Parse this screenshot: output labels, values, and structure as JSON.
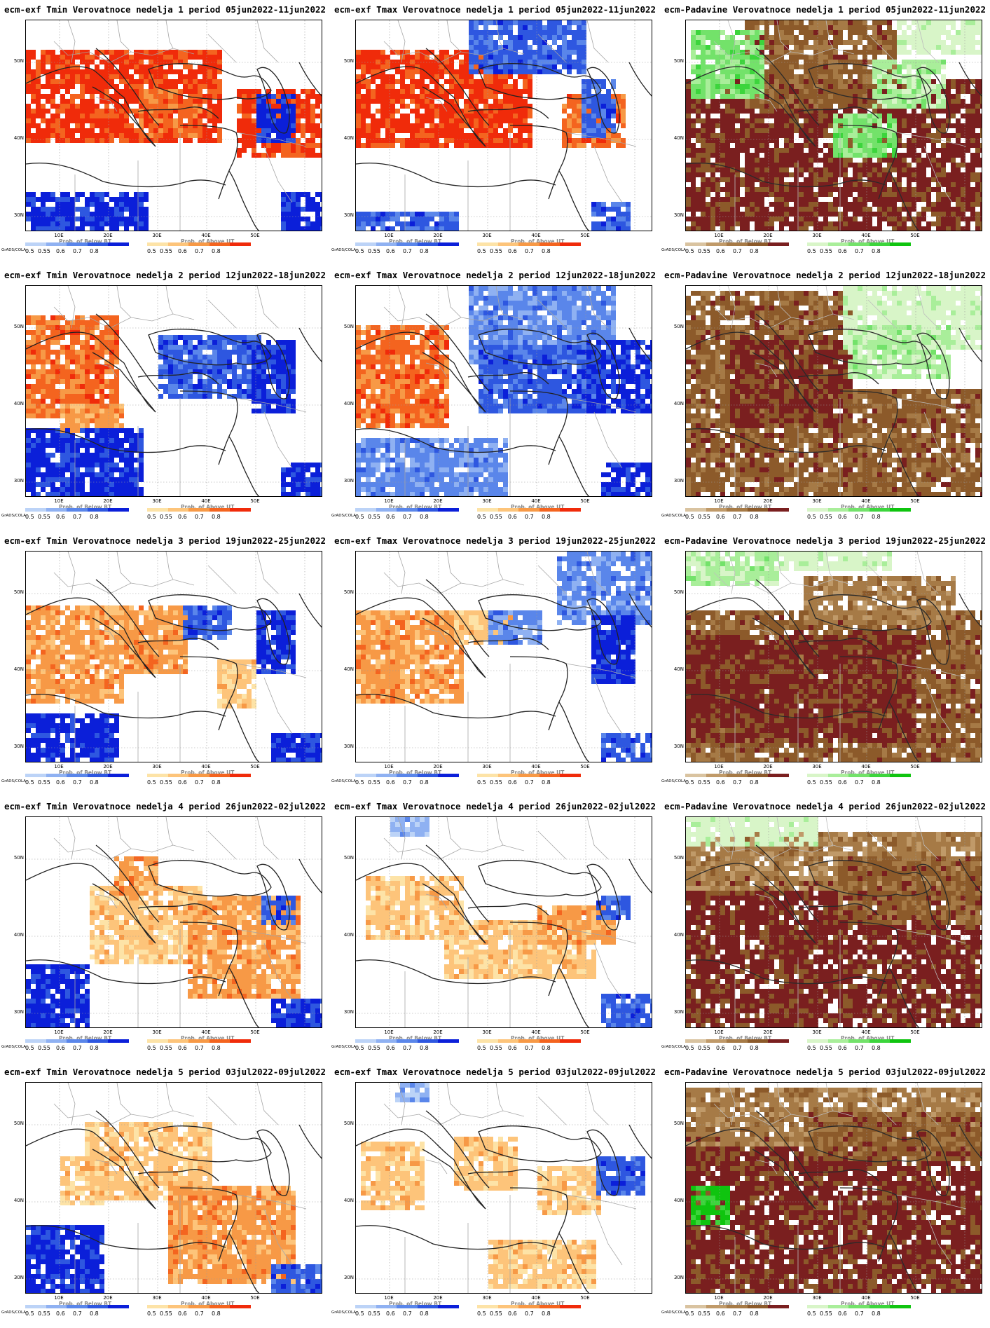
{
  "axes": {
    "lat_labels": [
      "50N",
      "40N",
      "30N"
    ],
    "lon_labels": [
      "10E",
      "20E",
      "30E",
      "40E",
      "50E"
    ]
  },
  "legend": {
    "grads_label": "GrADS/COLA",
    "below_label": "Prob. of Below BT",
    "above_label": "Prob. of Above UT",
    "values": [
      "0.5",
      "0.55",
      "0.6",
      "0.7",
      "0.8"
    ],
    "below_colors": [
      "#bcd3f7",
      "#8fb1f2",
      "#5a86ea",
      "#2e57e0",
      "#0b1fd9"
    ],
    "above_colors": [
      "#fde3a7",
      "#fdc47a",
      "#f79946",
      "#f4641f",
      "#f02b0a"
    ],
    "dry_colors": [
      "#d9c3a0",
      "#c09a69",
      "#a67a46",
      "#8c5a2a",
      "#7a1f1f"
    ],
    "wet_colors": [
      "#d8f5c8",
      "#a9ee9a",
      "#73e26a",
      "#3cd53c",
      "#0fc40f"
    ]
  },
  "rows": [
    {
      "week": "1",
      "tmin_title": "ecm-exf Tmin Verovatnoce nedelja 1 period 05jun2022-11jun2022",
      "tmax_title": "ecm-exf Tmax Verovatnoce nedelja 1 period 05jun2022-11jun2022",
      "precip_title": "ecm-Padavine Verovatnoce nedelja 1 period 05jun2022-11jun2022"
    },
    {
      "week": "2",
      "tmin_title": "ecm-exf Tmin Verovatnoce nedelja 2 period 12jun2022-18jun2022",
      "tmax_title": "ecm-exf Tmax Verovatnoce nedelja 2 period 12jun2022-18jun2022",
      "precip_title": "ecm-Padavine Verovatnoce nedelja 2 period 12jun2022-18jun2022"
    },
    {
      "week": "3",
      "tmin_title": "ecm-exf Tmin Verovatnoce nedelja 3 period 19jun2022-25jun2022",
      "tmax_title": "ecm-exf Tmax Verovatnoce nedelja 3 period 19jun2022-25jun2022",
      "precip_title": "ecm-Padavine Verovatnoce nedelja 3 period 19jun2022-25jun2022"
    },
    {
      "week": "4",
      "tmin_title": "ecm-exf Tmin Verovatnoce nedelja 4 period 26jun2022-02jul2022",
      "tmax_title": "ecm-exf Tmax Verovatnoce nedelja 4 period 26jun2022-02jul2022",
      "precip_title": "ecm-Padavine Verovatnoce nedelja 4 period 26jun2022-02jul2022"
    },
    {
      "week": "5",
      "tmin_title": "ecm-exf Tmin Verovatnoce nedelja 5 period 03jul2022-09jul2022",
      "tmax_title": "ecm-exf Tmax Verovatnoce nedelja 5 period 03jul2022-09jul2022",
      "precip_title": "ecm-Padavine Verovatnoce nedelja 5 period 03jul2022-09jul2022"
    }
  ],
  "patterns": {
    "tmin": [
      [
        [
          "a",
          0,
          0.16,
          0.66,
          0.4,
          4
        ],
        [
          "a",
          0.38,
          0.34,
          0.2,
          0.2,
          3
        ],
        [
          "a",
          0.72,
          0.34,
          0.28,
          0.3,
          4
        ],
        [
          "b",
          0,
          0.82,
          0.4,
          0.18,
          4
        ],
        [
          "b",
          0.78,
          0.36,
          0.12,
          0.2,
          4
        ],
        [
          "b",
          0.86,
          0.82,
          0.14,
          0.18,
          4
        ]
      ],
      [
        [
          "a",
          0,
          0.16,
          0.3,
          0.46,
          3
        ],
        [
          "a",
          0.12,
          0.56,
          0.2,
          0.12,
          2
        ],
        [
          "b",
          0,
          0.68,
          0.38,
          0.32,
          4
        ],
        [
          "b",
          0.46,
          0.24,
          0.32,
          0.28,
          3
        ],
        [
          "b",
          0.76,
          0.26,
          0.14,
          0.34,
          4
        ],
        [
          "b",
          0.86,
          0.84,
          0.14,
          0.16,
          4
        ]
      ],
      [
        [
          "a",
          0,
          0.26,
          0.32,
          0.44,
          2
        ],
        [
          "a",
          0.34,
          0.26,
          0.2,
          0.3,
          2
        ],
        [
          "a",
          0.66,
          0.52,
          0.1,
          0.2,
          1
        ],
        [
          "b",
          0.54,
          0.26,
          0.14,
          0.14,
          3
        ],
        [
          "b",
          0.78,
          0.3,
          0.12,
          0.26,
          4
        ],
        [
          "b",
          0,
          0.78,
          0.3,
          0.22,
          4
        ],
        [
          "b",
          0.84,
          0.88,
          0.16,
          0.12,
          4
        ]
      ],
      [
        [
          "a",
          0.22,
          0.34,
          0.36,
          0.34,
          1
        ],
        [
          "a",
          0.56,
          0.38,
          0.36,
          0.46,
          2
        ],
        [
          "a",
          0.3,
          0.2,
          0.14,
          0.16,
          2
        ],
        [
          "b",
          0,
          0.7,
          0.2,
          0.3,
          4
        ],
        [
          "b",
          0.84,
          0.86,
          0.16,
          0.14,
          4
        ],
        [
          "b",
          0.8,
          0.38,
          0.1,
          0.12,
          3
        ]
      ],
      [
        [
          "a",
          0.2,
          0.2,
          0.42,
          0.34,
          1
        ],
        [
          "a",
          0.48,
          0.5,
          0.42,
          0.44,
          2
        ],
        [
          "a",
          0.12,
          0.36,
          0.16,
          0.2,
          1
        ],
        [
          "b",
          0,
          0.68,
          0.26,
          0.32,
          4
        ],
        [
          "b",
          0.84,
          0.88,
          0.16,
          0.12,
          3
        ]
      ]
    ],
    "tmax": [
      [
        [
          "a",
          0,
          0.16,
          0.58,
          0.42,
          4
        ],
        [
          "a",
          0.7,
          0.36,
          0.2,
          0.22,
          3
        ],
        [
          "b",
          0.38,
          0,
          0.38,
          0.24,
          3
        ],
        [
          "b",
          0.76,
          0.3,
          0.1,
          0.24,
          3
        ],
        [
          "b",
          0,
          0.92,
          0.34,
          0.08,
          3
        ],
        [
          "b",
          0.8,
          0.88,
          0.12,
          0.12,
          3
        ]
      ],
      [
        [
          "a",
          0,
          0.2,
          0.3,
          0.46,
          3
        ],
        [
          "b",
          0.38,
          0,
          0.48,
          0.36,
          2
        ],
        [
          "b",
          0.42,
          0.3,
          0.4,
          0.3,
          3
        ],
        [
          "b",
          0.78,
          0.26,
          0.22,
          0.32,
          4
        ],
        [
          "b",
          0,
          0.72,
          0.5,
          0.28,
          2
        ],
        [
          "b",
          0.84,
          0.84,
          0.16,
          0.16,
          4
        ]
      ],
      [
        [
          "a",
          0,
          0.3,
          0.36,
          0.4,
          2
        ],
        [
          "a",
          0.34,
          0.28,
          0.2,
          0.16,
          1
        ],
        [
          "b",
          0.68,
          0,
          0.32,
          0.34,
          2
        ],
        [
          "b",
          0.8,
          0.32,
          0.14,
          0.3,
          4
        ],
        [
          "b",
          0.46,
          0.28,
          0.16,
          0.14,
          2
        ],
        [
          "b",
          0.84,
          0.86,
          0.16,
          0.14,
          3
        ]
      ],
      [
        [
          "a",
          0.04,
          0.3,
          0.32,
          0.26,
          1
        ],
        [
          "a",
          0.3,
          0.5,
          0.5,
          0.26,
          1
        ],
        [
          "a",
          0.62,
          0.42,
          0.24,
          0.18,
          2
        ],
        [
          "b",
          0.82,
          0.38,
          0.1,
          0.1,
          3
        ],
        [
          "b",
          0.84,
          0.84,
          0.16,
          0.16,
          3
        ],
        [
          "b",
          0.12,
          0.02,
          0.12,
          0.06,
          1
        ]
      ],
      [
        [
          "a",
          0.02,
          0.3,
          0.2,
          0.28,
          1
        ],
        [
          "a",
          0.34,
          0.26,
          0.2,
          0.24,
          1
        ],
        [
          "a",
          0.62,
          0.4,
          0.2,
          0.22,
          1
        ],
        [
          "a",
          0.46,
          0.76,
          0.34,
          0.2,
          1
        ],
        [
          "b",
          0.82,
          0.36,
          0.14,
          0.16,
          3
        ],
        [
          "b",
          0.14,
          0.02,
          0.1,
          0.05,
          1
        ]
      ]
    ],
    "precip": [
      [
        [
          "d",
          0,
          0.28,
          1,
          0.72,
          4
        ],
        [
          "d",
          0.2,
          0,
          0.5,
          0.4,
          3
        ],
        [
          "w",
          0.02,
          0.06,
          0.24,
          0.3,
          2
        ],
        [
          "w",
          0.5,
          0.46,
          0.2,
          0.18,
          2
        ],
        [
          "w",
          0.64,
          0.2,
          0.22,
          0.2,
          1
        ],
        [
          "w",
          0.72,
          0,
          0.28,
          0.14,
          0
        ]
      ],
      [
        [
          "d",
          0,
          0.04,
          0.56,
          0.96,
          3
        ],
        [
          "d",
          0.16,
          0.26,
          0.4,
          0.4,
          4
        ],
        [
          "d",
          0.54,
          0.5,
          0.46,
          0.5,
          3
        ],
        [
          "w",
          0.54,
          0,
          0.46,
          0.3,
          0
        ],
        [
          "w",
          0.56,
          0.2,
          0.32,
          0.24,
          1
        ]
      ],
      [
        [
          "d",
          0,
          0.3,
          1,
          0.7,
          3
        ],
        [
          "d",
          0,
          0.4,
          0.76,
          0.5,
          4
        ],
        [
          "d",
          0.4,
          0.12,
          0.5,
          0.22,
          2
        ],
        [
          "w",
          0,
          0,
          0.3,
          0.14,
          1
        ],
        [
          "w",
          0.3,
          0,
          0.38,
          0.08,
          0
        ]
      ],
      [
        [
          "d",
          0,
          0.28,
          1,
          0.72,
          4
        ],
        [
          "d",
          0,
          0.08,
          1,
          0.26,
          2
        ],
        [
          "d",
          0.52,
          0.2,
          0.48,
          0.3,
          3
        ],
        [
          "w",
          0,
          0.02,
          0.44,
          0.1,
          0
        ]
      ],
      [
        [
          "d",
          0,
          0.26,
          1,
          0.74,
          4
        ],
        [
          "d",
          0,
          0.04,
          1,
          0.24,
          2
        ],
        [
          "d",
          0.4,
          0.14,
          0.6,
          0.22,
          3
        ],
        [
          "w",
          0.02,
          0.5,
          0.12,
          0.16,
          4
        ]
      ]
    ]
  }
}
